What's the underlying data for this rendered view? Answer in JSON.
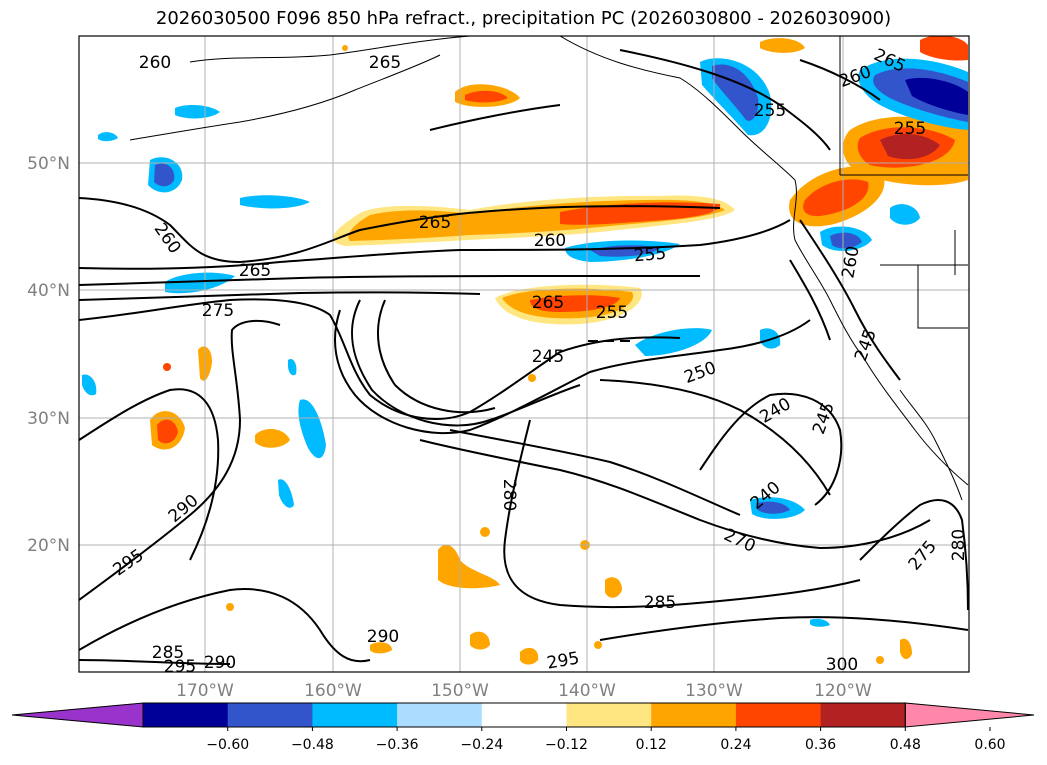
{
  "title": "2026030500 F096 850 hPa refract., precipitation PC (2026030800 - 2026030900)",
  "map": {
    "lat_labels": [
      "50°N",
      "40°N",
      "30°N",
      "20°N"
    ],
    "lon_labels": [
      "170°W",
      "160°W",
      "150°W",
      "140°W",
      "130°W",
      "120°W"
    ],
    "axis_label_color": "#808080",
    "contour_labels": [
      "260",
      "265",
      "255",
      "260",
      "265",
      "265",
      "260",
      "255",
      "260",
      "255",
      "265",
      "275",
      "265",
      "255",
      "245",
      "250",
      "245",
      "240",
      "245",
      "240",
      "280",
      "270",
      "275",
      "290",
      "295",
      "285",
      "285",
      "295",
      "290",
      "290",
      "295",
      "300",
      "260",
      "280"
    ]
  },
  "colorbar": {
    "ticks": [
      "−0.60",
      "−0.48",
      "−0.36",
      "−0.24",
      "−0.12",
      "0.12",
      "0.24",
      "0.36",
      "0.48",
      "0.60"
    ],
    "colors": [
      "#9933cc",
      "#000099",
      "#3355cc",
      "#00bbff",
      "#aaddff",
      "#ffffff",
      "#ffe680",
      "#ffa500",
      "#ff4500",
      "#b22222",
      "#ff88aa"
    ]
  }
}
